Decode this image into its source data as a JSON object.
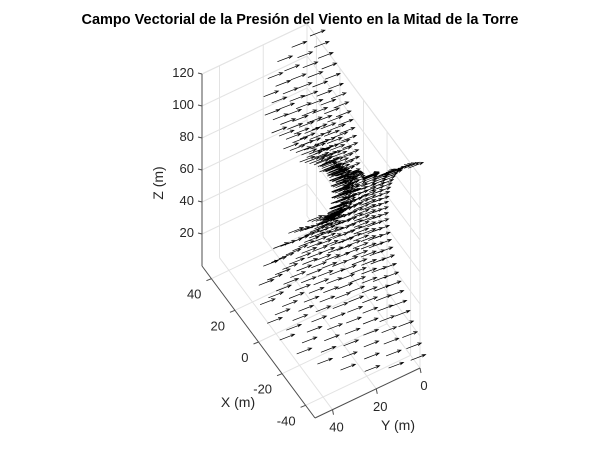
{
  "chart_data": {
    "type": "quiver3",
    "title": "Campo Vectorial de la Presión del Viento en la Mitad de la Torre",
    "xlabel": "X (m)",
    "ylabel": "Y (m)",
    "zlabel": "Z (m)",
    "x_ticks": [
      "40",
      "20",
      "0",
      "-20",
      "-40"
    ],
    "y_ticks": [
      "0",
      "20",
      "40"
    ],
    "z_ticks": [
      "120",
      "100",
      "80",
      "60",
      "40",
      "20"
    ],
    "xlim": [
      -48,
      48
    ],
    "ylim": [
      0,
      48
    ],
    "zlim": [
      0,
      120
    ],
    "grid": true,
    "arrow_color": "#000000",
    "description": "Half hyperboloid tower surface (waist near z=60) with wind-pressure arrows pointing roughly in +Y / tangential direction; vectors densely packed near the tower waist."
  }
}
